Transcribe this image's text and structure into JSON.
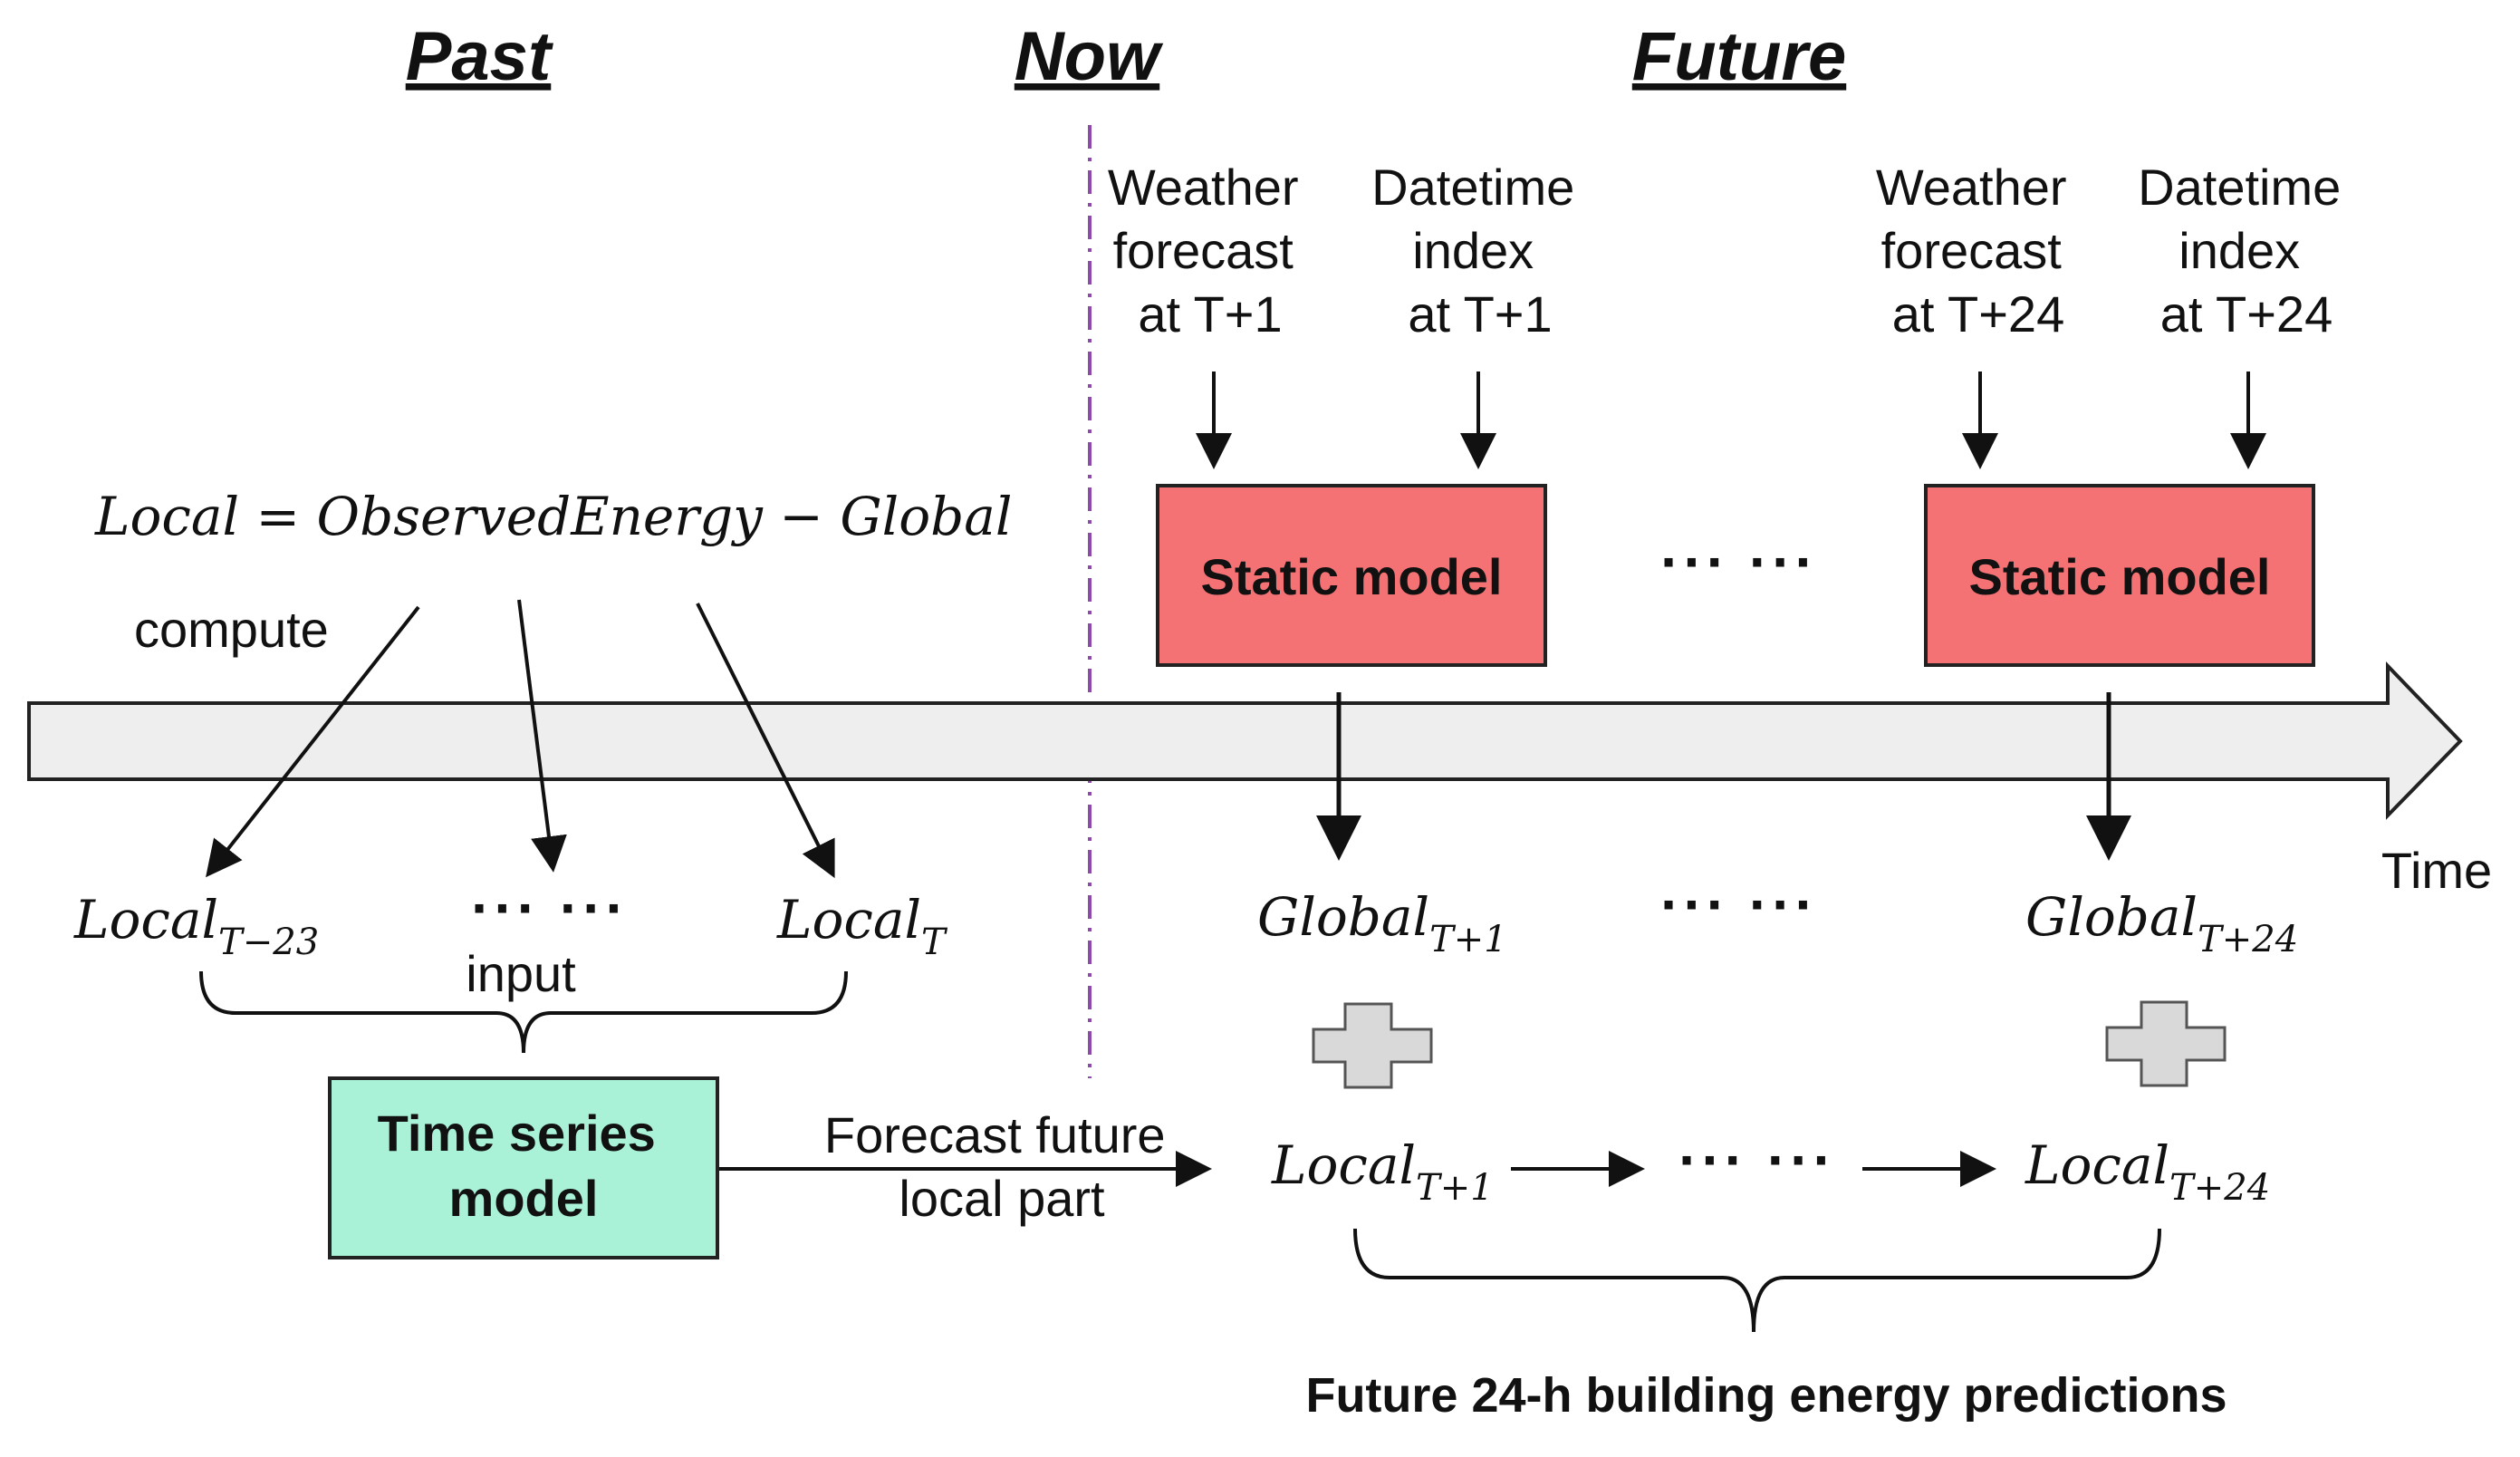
{
  "headers": {
    "past": "Past",
    "now": "Now",
    "future": "Future"
  },
  "formula": "Local = ObservedEnergy − Global",
  "compute_label": "compute",
  "input_label": "input",
  "time_label": "Time",
  "past_inputs": [
    {
      "base": "Local",
      "sub": "T−23"
    },
    {
      "base": "Local",
      "sub": "T"
    }
  ],
  "ellipsis": "··· ···",
  "features": [
    {
      "lines": [
        "Weather",
        "forecast",
        "at T+1"
      ]
    },
    {
      "lines": [
        "Datetime",
        "index",
        "at T+1"
      ]
    },
    {
      "lines": [
        "Weather",
        "forecast",
        "at T+24"
      ]
    },
    {
      "lines": [
        "Datetime",
        "index",
        "at T+24"
      ]
    }
  ],
  "static_model_label": "Static model",
  "global_outputs": [
    {
      "base": "Global",
      "sub": "T+1"
    },
    {
      "base": "Global",
      "sub": "T+24"
    }
  ],
  "local_outputs": [
    {
      "base": "Local",
      "sub": "T+1"
    },
    {
      "base": "Local",
      "sub": "T+24"
    }
  ],
  "time_series_model_lines": [
    "Time series",
    "model"
  ],
  "forecast_label_lines": [
    "Forecast future",
    "local part"
  ],
  "prediction_label": "Future 24-h building energy predictions",
  "colors": {
    "static_model_fill": "#f47174",
    "time_series_fill": "#a9f2d8",
    "timeline_fill": "#eeeeee",
    "now_line": "#8e4aa8",
    "plus_fill": "#d9d9d9"
  }
}
